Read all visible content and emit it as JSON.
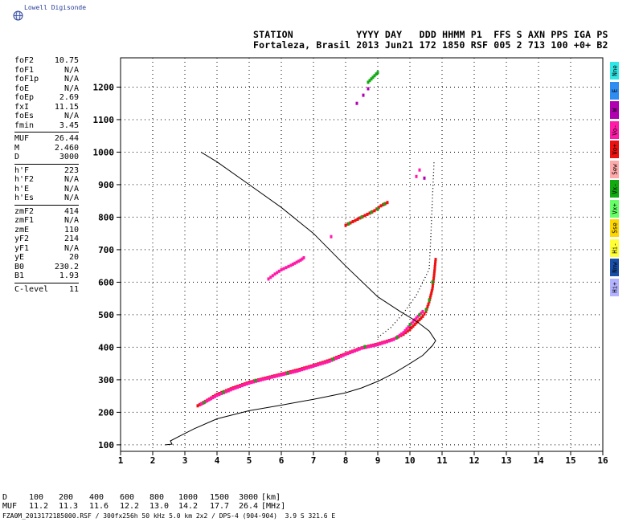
{
  "app": {
    "logo_text": "Lowell Digisonde"
  },
  "header": {
    "line1": "STATION           YYYY DAY   DDD HHMM P1  FFS S AXN PPS IGA PS",
    "line2": "Fortaleza, Brasil 2013 Jun21 172 1850 RSF 005 2 713 100 +0+ B2"
  },
  "params": {
    "group1": [
      {
        "k": "foF2",
        "v": "10.75"
      },
      {
        "k": "foF1",
        "v": "N/A"
      },
      {
        "k": "foF1p",
        "v": "N/A"
      },
      {
        "k": "foE",
        "v": "N/A"
      },
      {
        "k": "foEp",
        "v": "2.69"
      },
      {
        "k": "fxI",
        "v": "11.15"
      },
      {
        "k": "foEs",
        "v": "N/A"
      },
      {
        "k": "fmin",
        "v": "3.45"
      }
    ],
    "group2": [
      {
        "k": "MUF",
        "v": "26.44"
      },
      {
        "k": "M",
        "v": "2.460"
      },
      {
        "k": "D",
        "v": "3000"
      }
    ],
    "group3": [
      {
        "k": "h'F",
        "v": "223"
      },
      {
        "k": "h'F2",
        "v": "N/A"
      },
      {
        "k": "h'E",
        "v": "N/A"
      },
      {
        "k": "h'Es",
        "v": "N/A"
      }
    ],
    "group4": [
      {
        "k": "zmF2",
        "v": "414"
      },
      {
        "k": "zmF1",
        "v": "N/A"
      },
      {
        "k": "zmE",
        "v": "110"
      },
      {
        "k": "yF2",
        "v": "214"
      },
      {
        "k": "yF1",
        "v": "N/A"
      },
      {
        "k": "yE",
        "v": "20"
      },
      {
        "k": "B0",
        "v": "230.2"
      },
      {
        "k": "B1",
        "v": "1.93"
      }
    ],
    "group5": [
      {
        "k": "C-level",
        "v": "11"
      }
    ]
  },
  "legend": [
    {
      "label": "Nne",
      "color": "#33e6e6"
    },
    {
      "label": "E",
      "color": "#2f8cf0"
    },
    {
      "label": "W",
      "color": "#b000b0"
    },
    {
      "label": "Vo-",
      "color": "#ff1aa8"
    },
    {
      "label": "Vo+",
      "color": "#ee1111"
    },
    {
      "label": "Sew",
      "color": "#ffaaaa"
    },
    {
      "label": "Vx-",
      "color": "#11aa11"
    },
    {
      "label": "Vx+",
      "color": "#66ff66"
    },
    {
      "label": "Sse",
      "color": "#ffd700"
    },
    {
      "label": "Hi-",
      "color": "#ffff33"
    },
    {
      "label": "Nnw",
      "color": "#1a4fa8"
    },
    {
      "label": "Hi+",
      "color": "#b3b3ff"
    }
  ],
  "muf_table": {
    "d_label": "D",
    "d_values": [
      "100",
      "200",
      "400",
      "600",
      "800",
      "1000",
      "1500",
      "3000"
    ],
    "d_unit": "[km]",
    "muf_label": "MUF",
    "muf_values": [
      "11.2",
      "11.3",
      "11.6",
      "12.2",
      "13.0",
      "14.2",
      "17.7",
      "26.4"
    ],
    "muf_unit": "[MHz]"
  },
  "footer": "FZA0M_2013172185000.RSF / 300fx256h 50 kHz 5.0 km 2x2 / DPS-4 (904-904)  3.9 S 321.6 E",
  "chart_data": {
    "type": "scatter",
    "xlim": [
      1,
      16
    ],
    "ylim": [
      80,
      1290
    ],
    "x_ticks": [
      "1",
      "2",
      "3",
      "4",
      "5",
      "6",
      "7",
      "8",
      "9",
      "10",
      "11",
      "12",
      "13",
      "14",
      "15",
      "16"
    ],
    "y_ticks": [
      "100",
      "200",
      "300",
      "400",
      "500",
      "600",
      "700",
      "800",
      "900",
      "1000",
      "1100",
      "1200"
    ],
    "grid": true,
    "series": [
      {
        "color": "#ee1111",
        "style": "trace",
        "points": [
          [
            3.4,
            220
          ],
          [
            3.7,
            237
          ],
          [
            4.0,
            255
          ],
          [
            4.5,
            275
          ],
          [
            5.0,
            292
          ],
          [
            5.5,
            305
          ],
          [
            6.0,
            317
          ],
          [
            6.5,
            330
          ],
          [
            7.0,
            344
          ],
          [
            7.5,
            360
          ],
          [
            8.0,
            380
          ],
          [
            8.5,
            398
          ],
          [
            9.0,
            410
          ],
          [
            9.5,
            425
          ],
          [
            9.8,
            440
          ],
          [
            10.0,
            455
          ],
          [
            10.2,
            475
          ],
          [
            10.4,
            495
          ],
          [
            10.5,
            510
          ],
          [
            10.6,
            540
          ],
          [
            10.7,
            580
          ],
          [
            10.75,
            620
          ],
          [
            10.8,
            670
          ]
        ]
      },
      {
        "color": "#ff1aa8",
        "style": "trace",
        "points": [
          [
            3.5,
            225
          ],
          [
            4.0,
            252
          ],
          [
            4.5,
            272
          ],
          [
            5.0,
            290
          ],
          [
            5.5,
            303
          ],
          [
            6.0,
            315
          ],
          [
            6.5,
            327
          ],
          [
            7.0,
            342
          ],
          [
            7.5,
            357
          ],
          [
            8.0,
            378
          ],
          [
            8.5,
            397
          ],
          [
            9.0,
            408
          ],
          [
            9.5,
            424
          ],
          [
            9.8,
            445
          ],
          [
            10.0,
            468
          ],
          [
            10.2,
            490
          ],
          [
            10.4,
            510
          ]
        ]
      },
      {
        "color": "#11aa11",
        "style": "sparse",
        "points": [
          [
            3.6,
            230
          ],
          [
            4.2,
            262
          ],
          [
            5.2,
            298
          ],
          [
            6.2,
            320
          ],
          [
            7.6,
            363
          ],
          [
            8.6,
            402
          ],
          [
            9.6,
            430
          ],
          [
            10.0,
            470
          ],
          [
            10.3,
            500
          ],
          [
            10.5,
            515
          ],
          [
            10.6,
            545
          ],
          [
            10.7,
            600
          ]
        ]
      },
      {
        "color": "#ff1aa8",
        "style": "trace",
        "points": [
          [
            5.6,
            610
          ],
          [
            5.8,
            625
          ],
          [
            6.0,
            638
          ],
          [
            6.3,
            652
          ],
          [
            6.6,
            668
          ],
          [
            6.7,
            675
          ]
        ]
      },
      {
        "color": "#ee1111",
        "style": "trace",
        "points": [
          [
            8.0,
            775
          ],
          [
            8.3,
            790
          ],
          [
            8.6,
            805
          ],
          [
            8.9,
            820
          ],
          [
            9.1,
            835
          ],
          [
            9.3,
            845
          ]
        ]
      },
      {
        "color": "#11aa11",
        "style": "sparse",
        "points": [
          [
            8.1,
            780
          ],
          [
            8.5,
            800
          ],
          [
            8.8,
            815
          ],
          [
            9.0,
            825
          ],
          [
            9.2,
            840
          ]
        ]
      },
      {
        "color": "#ff1aa8",
        "style": "sparse",
        "points": [
          [
            7.55,
            740
          ],
          [
            10.2,
            925
          ],
          [
            10.3,
            945
          ]
        ]
      },
      {
        "color": "#b000b0",
        "style": "sparse",
        "points": [
          [
            8.35,
            1150
          ],
          [
            8.55,
            1175
          ],
          [
            10.45,
            920
          ],
          [
            8.7,
            1195
          ]
        ]
      },
      {
        "color": "#11aa11",
        "style": "trace",
        "points": [
          [
            8.7,
            1215
          ],
          [
            8.85,
            1230
          ],
          [
            9.0,
            1245
          ]
        ]
      },
      {
        "color": "#000000",
        "style": "dotted",
        "points": [
          [
            9.0,
            430
          ],
          [
            9.4,
            460
          ],
          [
            9.8,
            505
          ],
          [
            10.2,
            560
          ],
          [
            10.5,
            620
          ],
          [
            10.6,
            640
          ],
          [
            10.65,
            740
          ],
          [
            10.75,
            970
          ]
        ]
      },
      {
        "color": "#000000",
        "style": "line",
        "points": [
          [
            2.4,
            100
          ],
          [
            2.6,
            102
          ],
          [
            2.55,
            112
          ],
          [
            2.8,
            125
          ],
          [
            3.3,
            150
          ],
          [
            4.0,
            180
          ],
          [
            5.0,
            205
          ],
          [
            6.0,
            222
          ],
          [
            7.0,
            240
          ],
          [
            8.0,
            260
          ],
          [
            8.5,
            275
          ],
          [
            9.0,
            295
          ],
          [
            9.5,
            320
          ],
          [
            10.0,
            350
          ],
          [
            10.4,
            375
          ],
          [
            10.7,
            405
          ],
          [
            10.8,
            420
          ],
          [
            10.6,
            450
          ],
          [
            10.2,
            480
          ],
          [
            9.7,
            510
          ],
          [
            9.0,
            555
          ],
          [
            8.0,
            650
          ],
          [
            7.0,
            750
          ],
          [
            6.0,
            830
          ],
          [
            5.0,
            900
          ],
          [
            4.0,
            970
          ],
          [
            3.5,
            1000
          ]
        ]
      }
    ]
  }
}
